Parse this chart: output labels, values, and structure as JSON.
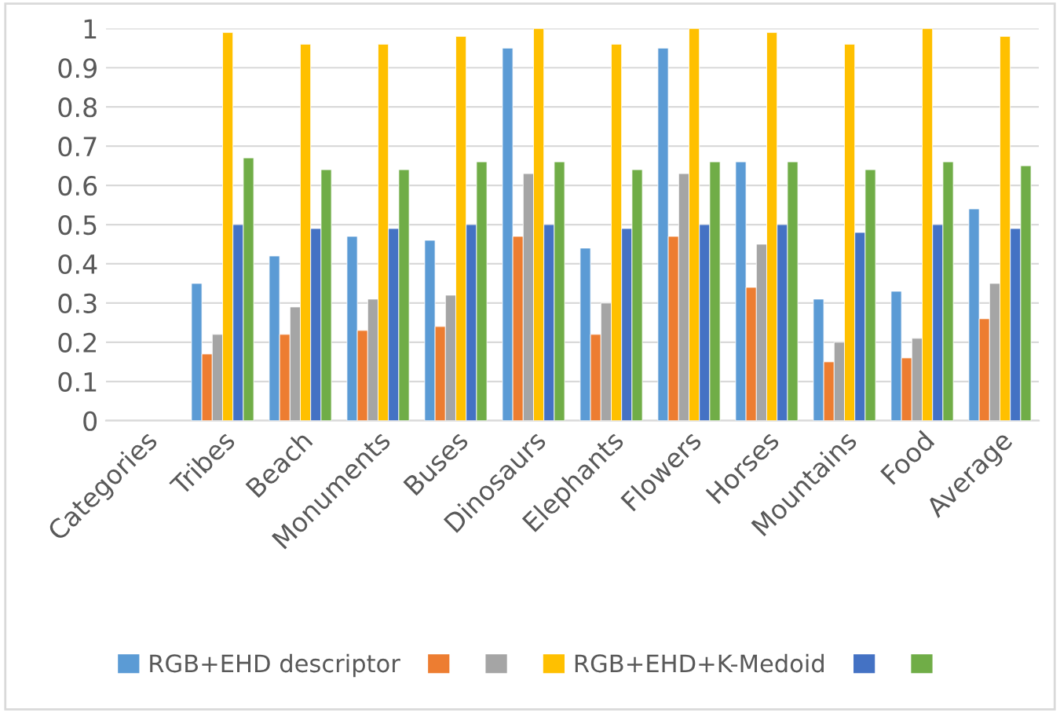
{
  "chart_data": {
    "type": "bar",
    "categories": [
      "Categories",
      "Tribes",
      "Beach",
      "Monuments",
      "Buses",
      "Dinosaurs",
      "Elephants",
      "Flowers",
      "Horses",
      "Mountains",
      "Food",
      "Average"
    ],
    "series": [
      {
        "name": "RGB+EHD descriptor",
        "color": "#5b9bd5",
        "values": [
          null,
          0.35,
          0.42,
          0.47,
          0.46,
          0.95,
          0.44,
          0.95,
          0.66,
          0.31,
          0.33,
          0.54
        ]
      },
      {
        "color": "#ed7d31",
        "values": [
          null,
          0.17,
          0.22,
          0.23,
          0.24,
          0.47,
          0.22,
          0.47,
          0.34,
          0.15,
          0.16,
          0.26
        ]
      },
      {
        "color": "#a5a5a5",
        "values": [
          null,
          0.22,
          0.29,
          0.31,
          0.32,
          0.63,
          0.3,
          0.63,
          0.45,
          0.2,
          0.21,
          0.35
        ]
      },
      {
        "name": "RGB+EHD+K-Medoid",
        "color": "#ffc000",
        "values": [
          null,
          0.99,
          0.96,
          0.96,
          0.98,
          1.0,
          0.96,
          1.0,
          0.99,
          0.96,
          1.0,
          0.98
        ]
      },
      {
        "color": "#4472c4",
        "values": [
          null,
          0.5,
          0.49,
          0.49,
          0.5,
          0.5,
          0.49,
          0.5,
          0.5,
          0.48,
          0.5,
          0.49
        ]
      },
      {
        "color": "#70ad47",
        "values": [
          null,
          0.67,
          0.64,
          0.64,
          0.66,
          0.66,
          0.64,
          0.66,
          0.66,
          0.64,
          0.66,
          0.65
        ]
      }
    ],
    "ylim": [
      0,
      1
    ],
    "yticks": [
      0,
      0.1,
      0.2,
      0.3,
      0.4,
      0.5,
      0.6,
      0.7,
      0.8,
      0.9,
      1
    ],
    "grid": "y",
    "legend": "bottom"
  }
}
